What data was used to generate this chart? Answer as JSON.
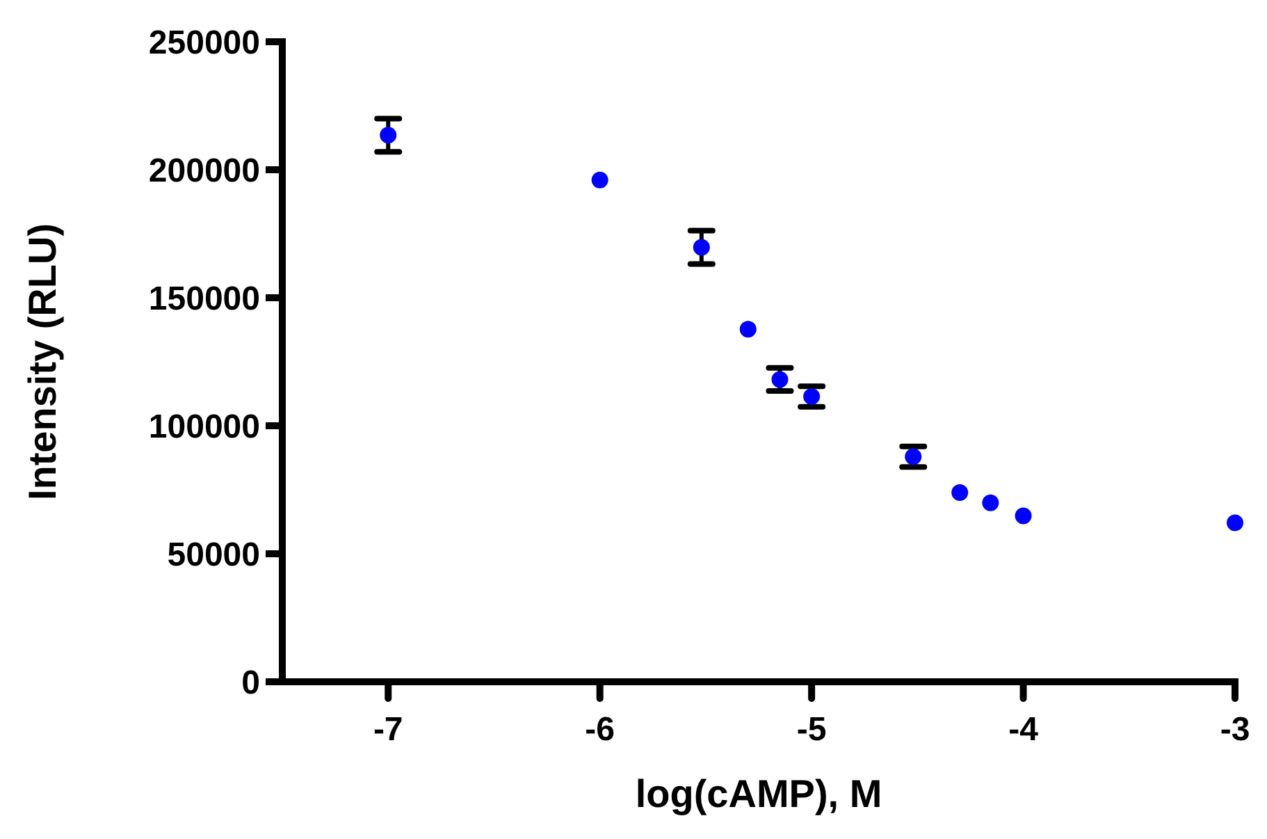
{
  "chart_data": {
    "type": "scatter",
    "xlabel": "log(cAMP), M",
    "ylabel": "Intensity (RLU)",
    "x": [
      -7,
      -6,
      -5.52,
      -5.3,
      -5.15,
      -5,
      -4.52,
      -4.3,
      -4.155,
      -4,
      -3
    ],
    "values": [
      213500,
      196000,
      169700,
      137700,
      118100,
      111400,
      87900,
      73900,
      69900,
      64800,
      62100
    ],
    "errors": [
      6500,
      null,
      6500,
      null,
      4500,
      4000,
      4000,
      null,
      null,
      null,
      null
    ],
    "color": "#0000ff",
    "marker": "circle",
    "xlim": [
      -7.5,
      -3
    ],
    "xticks": [
      -7,
      -6,
      -5,
      -4,
      -3
    ],
    "ylim": [
      0,
      250000
    ],
    "yticks": [
      0,
      50000,
      100000,
      150000,
      200000,
      250000
    ],
    "grid": false
  }
}
